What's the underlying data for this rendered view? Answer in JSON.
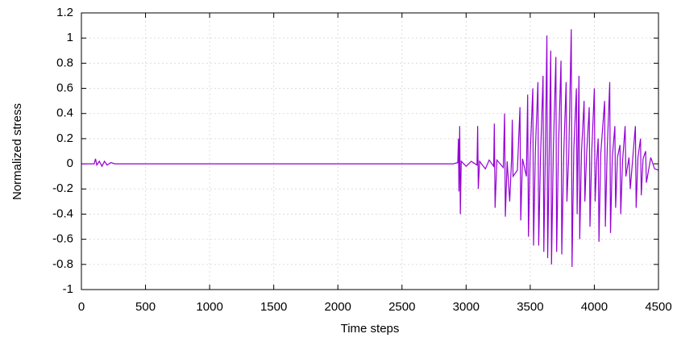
{
  "chart_data": {
    "type": "line",
    "x_label": "Time steps",
    "y_label": "Normalized stress",
    "xlim": [
      0,
      4500
    ],
    "ylim": [
      -1,
      1.2
    ],
    "xticks": [
      0,
      500,
      1000,
      1500,
      2000,
      2500,
      3000,
      3500,
      4000,
      4500
    ],
    "yticks": [
      -1,
      -0.8,
      -0.6,
      -0.4,
      -0.2,
      0,
      0.2,
      0.4,
      0.6,
      0.8,
      1,
      1.2
    ],
    "grid": true,
    "x": [
      0,
      100,
      110,
      120,
      140,
      160,
      180,
      200,
      230,
      260,
      2900,
      2935,
      2940,
      2944,
      2950,
      2955,
      2962,
      3000,
      3040,
      3085,
      3090,
      3095,
      3105,
      3150,
      3180,
      3215,
      3220,
      3226,
      3240,
      3290,
      3300,
      3306,
      3320,
      3340,
      3355,
      3360,
      3366,
      3400,
      3420,
      3426,
      3440,
      3470,
      3480,
      3486,
      3500,
      3520,
      3526,
      3540,
      3560,
      3566,
      3580,
      3600,
      3606,
      3618,
      3630,
      3636,
      3648,
      3660,
      3666,
      3680,
      3700,
      3706,
      3720,
      3740,
      3746,
      3762,
      3780,
      3786,
      3800,
      3820,
      3826,
      3840,
      3860,
      3866,
      3880,
      3886,
      3900,
      3920,
      3926,
      3940,
      3960,
      3966,
      3980,
      4000,
      4006,
      4020,
      4030,
      4036,
      4050,
      4080,
      4086,
      4100,
      4120,
      4126,
      4140,
      4160,
      4166,
      4180,
      4200,
      4206,
      4220,
      4240,
      4246,
      4270,
      4280,
      4300,
      4320,
      4326,
      4340,
      4360,
      4366,
      4380,
      4400,
      4406,
      4440,
      4470,
      4500
    ],
    "series": [
      {
        "color": "#9400d3",
        "values": [
          0,
          0,
          0.04,
          -0.01,
          0.02,
          -0.02,
          0.02,
          -0.01,
          0.01,
          0,
          0,
          0.01,
          0.2,
          -0.22,
          0.3,
          -0.4,
          0.02,
          -0.02,
          0.02,
          -0.01,
          0.3,
          -0.2,
          0.02,
          -0.04,
          0.03,
          -0.02,
          0.32,
          -0.35,
          0.03,
          -0.03,
          0.4,
          -0.42,
          0.02,
          -0.3,
          0.05,
          0.35,
          -0.1,
          -0.05,
          0.45,
          -0.45,
          0.04,
          -0.1,
          0.55,
          -0.58,
          0.08,
          0.6,
          -0.65,
          0.1,
          0.65,
          -0.65,
          0.05,
          0.7,
          -0.7,
          0.1,
          1.02,
          -0.75,
          0.08,
          0.9,
          -0.8,
          0.1,
          0.85,
          -0.7,
          0.12,
          0.82,
          -0.72,
          0.1,
          0.65,
          -0.3,
          0.05,
          1.07,
          -0.82,
          0.12,
          0.6,
          -0.4,
          0.7,
          -0.6,
          0.1,
          0.5,
          -0.3,
          0.08,
          0.45,
          -0.5,
          0.1,
          0.6,
          -0.3,
          0.05,
          0.2,
          -0.62,
          0.08,
          0.5,
          -0.5,
          0.1,
          0.65,
          -0.55,
          0.05,
          0.3,
          -0.35,
          0.05,
          0.15,
          -0.4,
          0.02,
          0.3,
          -0.1,
          0.05,
          -0.2,
          0.05,
          0.3,
          -0.35,
          0.05,
          0.2,
          -0.25,
          0.04,
          0.1,
          -0.15,
          0.05,
          -0.04,
          -0.05
        ]
      }
    ]
  }
}
